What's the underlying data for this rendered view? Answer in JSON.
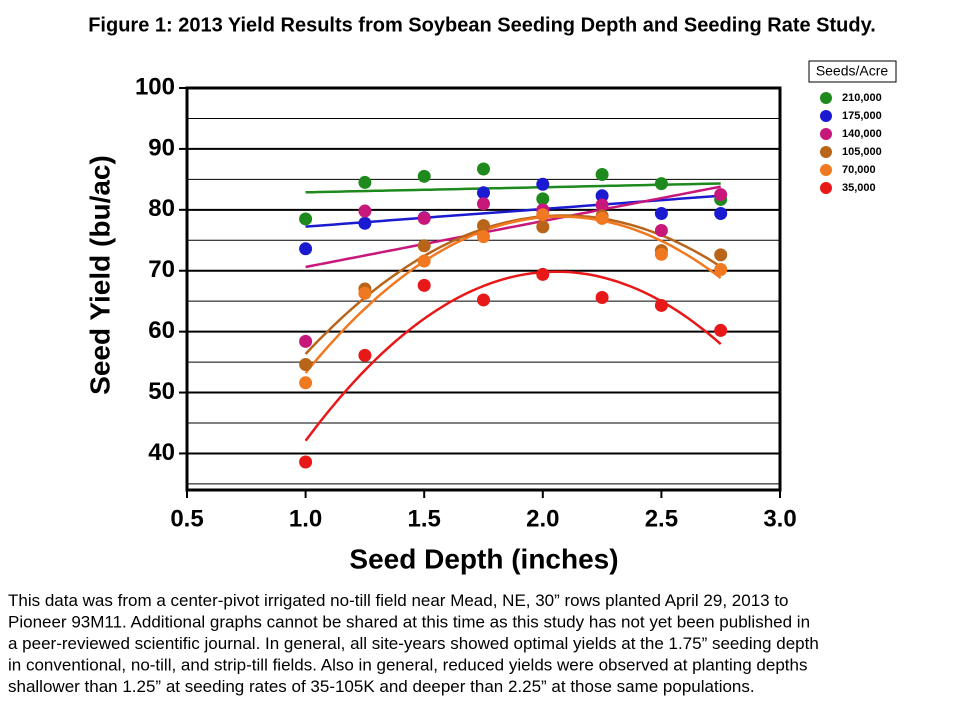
{
  "chart_data": {
    "type": "scatter",
    "title": "Figure 1:  2013 Yield Results from Soybean Seeding Depth and Seeding Rate Study.",
    "x_label": "Seed Depth (inches)",
    "y_label": "Seed Yield (bu/ac)",
    "legend_title": "Seeds/Acre",
    "legend_position": "right",
    "x": [
      1.0,
      1.25,
      1.5,
      1.75,
      2.0,
      2.25,
      2.5,
      2.75
    ],
    "xlim": [
      0.5,
      3.0
    ],
    "xticks": [
      0.5,
      {
        "value": 1,
        "label": "1.0"
      },
      1.5,
      {
        "value": 2,
        "label": "2.0"
      },
      2.5,
      {
        "value": 3,
        "label": "3.0"
      }
    ],
    "ylim": [
      34,
      100
    ],
    "yticks": [
      40,
      50,
      60,
      70,
      80,
      90,
      100
    ],
    "minor_yticks": [
      35,
      45,
      55,
      65,
      75,
      85,
      95
    ],
    "grid": true,
    "series": [
      {
        "name": "210,000",
        "color": "#1e8a1e",
        "trend": "linear",
        "values": [
          78.5,
          84.5,
          85.5,
          86.7,
          81.8,
          85.8,
          84.3,
          81.7
        ]
      },
      {
        "name": "175,000",
        "color": "#1a1ad0",
        "trend": "linear",
        "values": [
          73.6,
          77.8,
          78.7,
          82.8,
          84.2,
          82.3,
          79.4,
          79.4
        ]
      },
      {
        "name": "140,000",
        "color": "#c8177a",
        "trend": "linear",
        "values": [
          58.4,
          79.8,
          78.6,
          81.0,
          80.0,
          80.8,
          76.6,
          82.5
        ]
      },
      {
        "name": "105,000",
        "color": "#b8651a",
        "trend": "quadratic",
        "values": [
          54.6,
          67.0,
          74.1,
          77.4,
          77.2,
          79.0,
          73.3,
          72.6
        ]
      },
      {
        "name": "70,000",
        "color": "#f07820",
        "trend": "quadratic",
        "values": [
          51.6,
          66.3,
          71.6,
          75.6,
          79.2,
          78.6,
          72.7,
          70.2
        ]
      },
      {
        "name": "35,000",
        "color": "#e81818",
        "trend": "quadratic",
        "values": [
          38.6,
          56.1,
          67.6,
          65.2,
          69.4,
          65.6,
          64.3,
          60.2
        ]
      }
    ],
    "note_lines": [
      "This data was from a center-pivot irrigated no-till field near Mead, NE, 30” rows planted April 29, 2013 to",
      "Pioneer 93M11.  Additional graphs cannot be shared at this time as this study has not yet been published in",
      "a peer-reviewed  scientific journal.  In general, all site-years showed optimal yields at the 1.75” seeding depth",
      "in conventional, no-till, and strip-till fields.  Also in general, reduced yields were observed at planting depths",
      "shallower than 1.25” at seeding rates of 35-105K and deeper than 2.25” at those same populations."
    ]
  }
}
